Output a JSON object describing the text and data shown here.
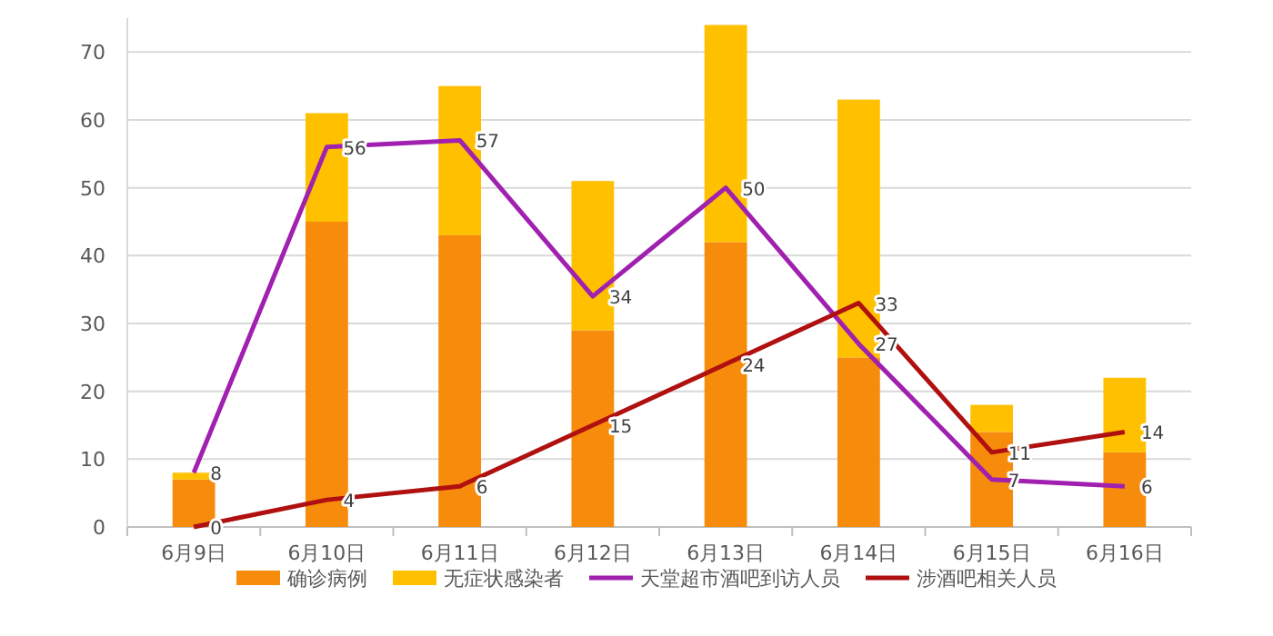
{
  "chart_data": {
    "type": "bar",
    "stacked": true,
    "categories": [
      "6月9日",
      "6月10日",
      "6月11日",
      "6月12日",
      "6月13日",
      "6月14日",
      "6月15日",
      "6月16日"
    ],
    "series": [
      {
        "name": "确诊病例",
        "color": "#f68b0c",
        "values": [
          7,
          45,
          43,
          29,
          42,
          25,
          14,
          11
        ]
      },
      {
        "name": "无症状感染者",
        "color": "#ffc000",
        "values": [
          1,
          16,
          22,
          22,
          32,
          38,
          4,
          11
        ]
      },
      {
        "name": "天堂超市酒吧到访人员",
        "type": "line",
        "color": "#a020b0",
        "values": [
          8,
          56,
          57,
          34,
          50,
          27,
          7,
          6
        ],
        "value_labels": [
          "8",
          "56",
          "57",
          "34",
          "50",
          "27",
          "7",
          "6"
        ]
      },
      {
        "name": "涉酒吧相关人员",
        "type": "line",
        "color": "#b01010",
        "values": [
          0,
          4,
          6,
          15,
          24,
          33,
          11,
          14
        ],
        "value_labels": [
          "0",
          "4",
          "6",
          "15",
          "24",
          "33",
          "11",
          "14"
        ]
      }
    ],
    "ylim": [
      0,
      75
    ],
    "yticks": [
      0,
      10,
      20,
      30,
      40,
      50,
      60,
      70
    ],
    "grid": "y",
    "legend": "bottom",
    "marker": "none"
  }
}
